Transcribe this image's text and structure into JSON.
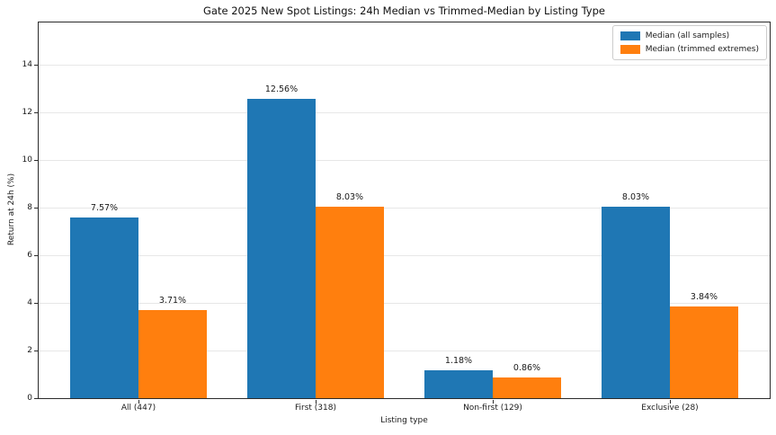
{
  "chart_data": {
    "type": "bar",
    "title": "Gate 2025 New Spot Listings: 24h Median vs Trimmed-Median by Listing Type",
    "xlabel": "Listing type",
    "ylabel": "Return at 24h (%)",
    "categories": [
      "All (447)",
      "First (318)",
      "Non-first (129)",
      "Exclusive (28)"
    ],
    "series": [
      {
        "name": "Median (all samples)",
        "color": "#1f77b4",
        "values": [
          7.57,
          12.56,
          1.18,
          8.03
        ]
      },
      {
        "name": "Median (trimmed extremes)",
        "color": "#ff7f0e",
        "values": [
          3.71,
          8.03,
          0.86,
          3.84
        ]
      }
    ],
    "bar_labels": [
      [
        "7.57%",
        "12.56%",
        "1.18%",
        "8.03%"
      ],
      [
        "3.71%",
        "8.03%",
        "0.86%",
        "3.84%"
      ]
    ],
    "yticks": [
      0,
      2,
      4,
      6,
      8,
      10,
      12,
      14
    ],
    "ylim": [
      0,
      15.76
    ],
    "grid": true,
    "legend_position": "upper right"
  }
}
